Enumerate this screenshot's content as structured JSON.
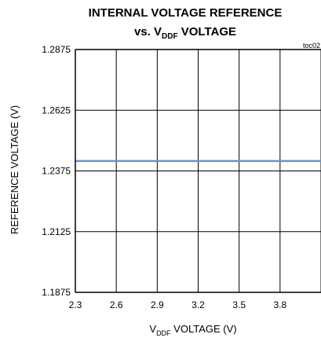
{
  "chart_data": {
    "type": "line",
    "title_line1": "INTERNAL VOLTAGE REFERENCE",
    "title_line2_prefix": "vs. V",
    "title_line2_sub": "DDF",
    "title_line2_suffix": " VOLTAGE",
    "figure_tag": "toc02",
    "xlabel_prefix": "V",
    "xlabel_sub": "DDF",
    "xlabel_suffix": " VOLTAGE (V)",
    "ylabel": "REFERENCE VOLTAGE (V)",
    "xlim": [
      2.3,
      4.1
    ],
    "ylim": [
      1.1875,
      1.2875
    ],
    "x_ticks": [
      "2.3",
      "2.6",
      "2.9",
      "3.2",
      "3.5",
      "3.8"
    ],
    "y_ticks": [
      "1.2875",
      "1.2625",
      "1.2375",
      "1.2125",
      "1.1875"
    ],
    "grid": true,
    "series": [
      {
        "color": "#6b93c6",
        "x": [
          2.3,
          2.6,
          2.9,
          3.2,
          3.5,
          3.8,
          4.1
        ],
        "y": [
          1.2416,
          1.2416,
          1.2416,
          1.2416,
          1.2416,
          1.2416,
          1.2416
        ]
      }
    ]
  }
}
